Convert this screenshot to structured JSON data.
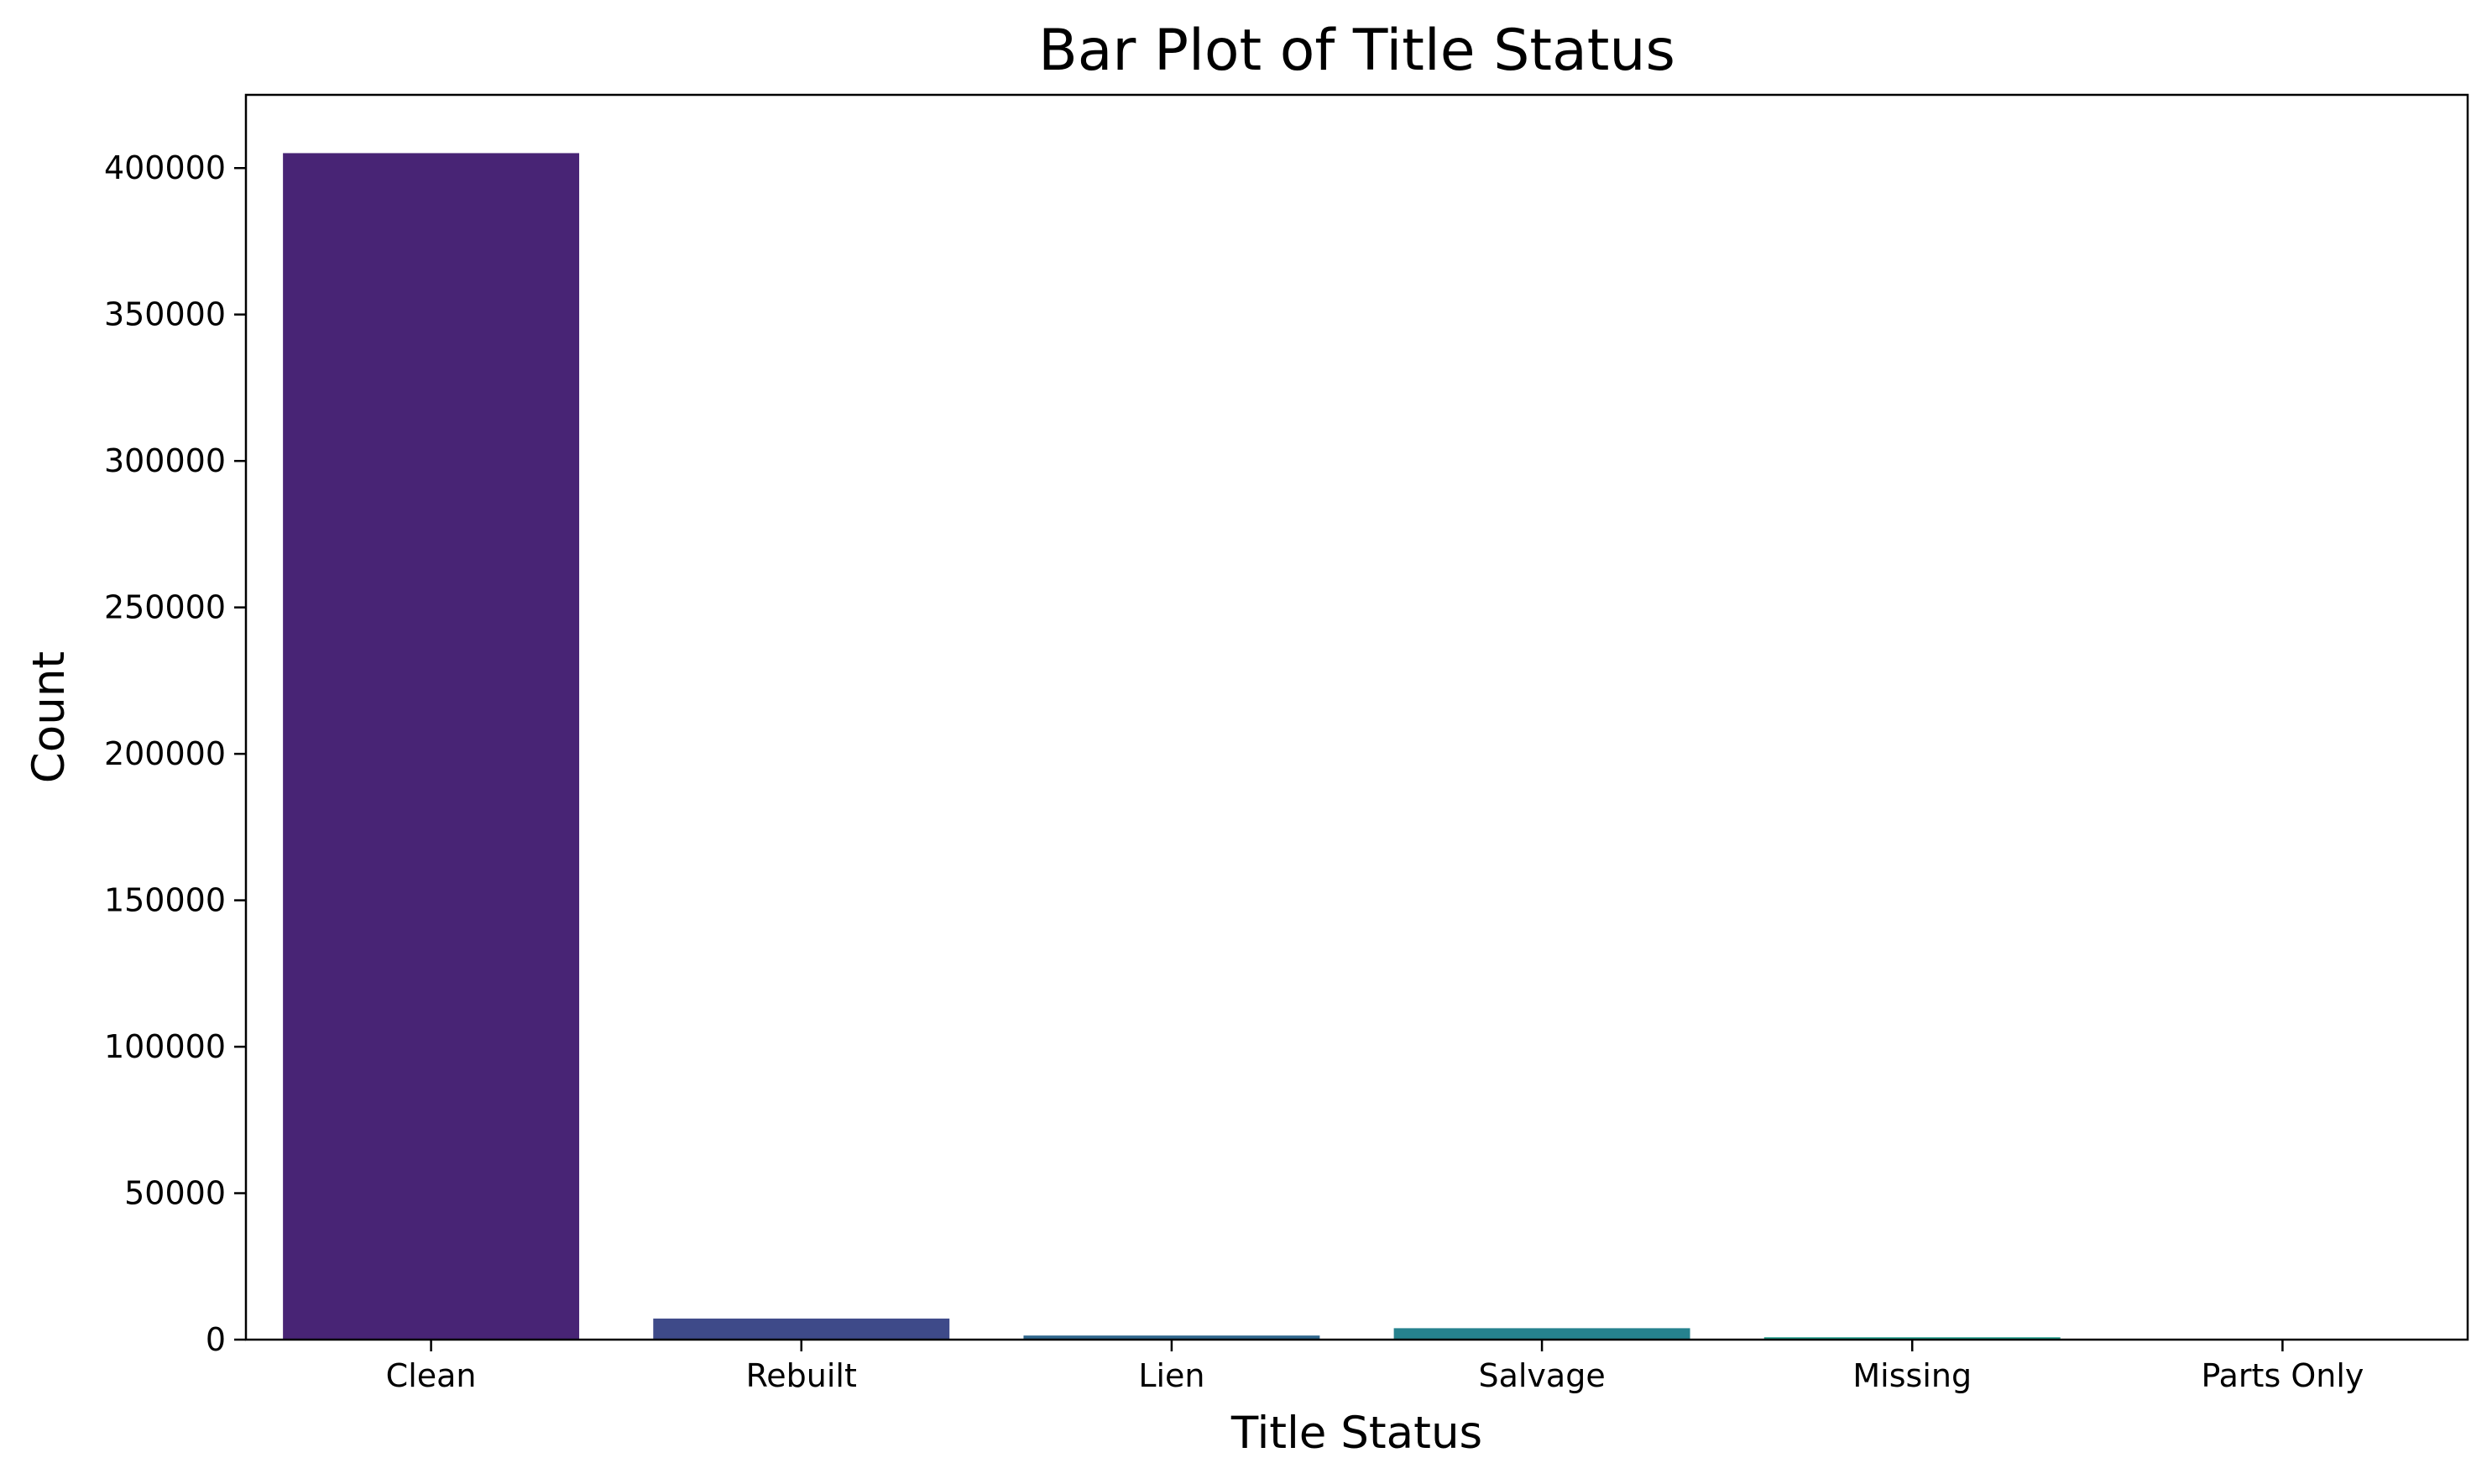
{
  "chart_data": {
    "type": "bar",
    "title": "Bar Plot of Title Status",
    "xlabel": "Title Status",
    "ylabel": "Count",
    "categories": [
      "Clean",
      "Rebuilt",
      "Lien",
      "Salvage",
      "Missing",
      "Parts Only"
    ],
    "values": [
      405100,
      7200,
      1400,
      3900,
      800,
      200
    ],
    "colors": [
      "#482475",
      "#3e4a89",
      "#31688e",
      "#26828e",
      "#1f9e89",
      "#35b779"
    ],
    "ylim": [
      0,
      425000
    ],
    "yticks": [
      0,
      50000,
      100000,
      150000,
      200000,
      250000,
      300000,
      350000,
      400000
    ],
    "ytick_labels": [
      "0",
      "50000",
      "100000",
      "150000",
      "200000",
      "250000",
      "300000",
      "350000",
      "400000"
    ],
    "grid": false,
    "legend": false
  }
}
